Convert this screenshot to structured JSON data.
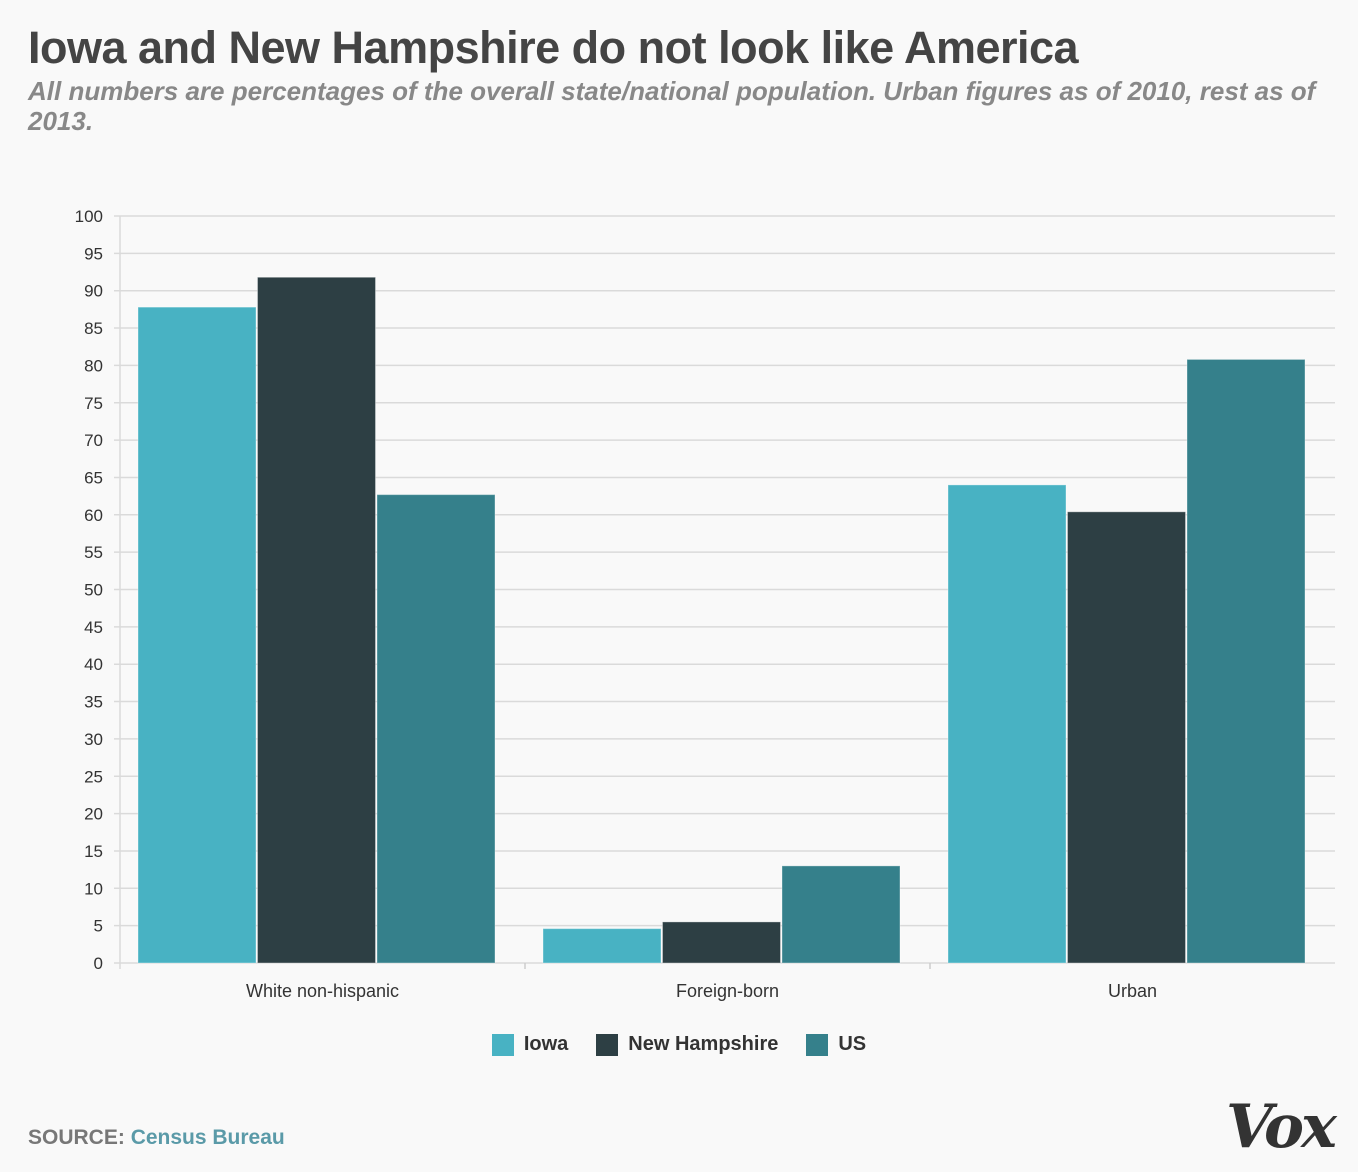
{
  "title": "Iowa and New Hampshire do not look like America",
  "subtitle": "All numbers are percentages of the overall state/national population. Urban figures as of 2010, rest as of 2013.",
  "source": {
    "label": "SOURCE:",
    "link": "Census Bureau"
  },
  "logo": "Vox",
  "chart_data": {
    "type": "bar",
    "title": "Iowa and New Hampshire do not look like America",
    "categories": [
      "White non-hispanic",
      "Foreign-born",
      "Urban"
    ],
    "series": [
      {
        "name": "Iowa",
        "color": "#48b2c3",
        "values": [
          87.8,
          4.6,
          64.0
        ]
      },
      {
        "name": "New Hampshire",
        "color": "#2d3f44",
        "values": [
          91.8,
          5.5,
          60.4
        ]
      },
      {
        "name": "US",
        "color": "#35808b",
        "values": [
          62.7,
          13.0,
          80.8
        ]
      }
    ],
    "ylim": [
      0,
      100
    ],
    "yticks": [
      0,
      5,
      10,
      15,
      20,
      25,
      30,
      35,
      40,
      45,
      50,
      55,
      60,
      65,
      70,
      75,
      80,
      85,
      90,
      95,
      100
    ],
    "grid": true,
    "legend": "bottom-center"
  }
}
